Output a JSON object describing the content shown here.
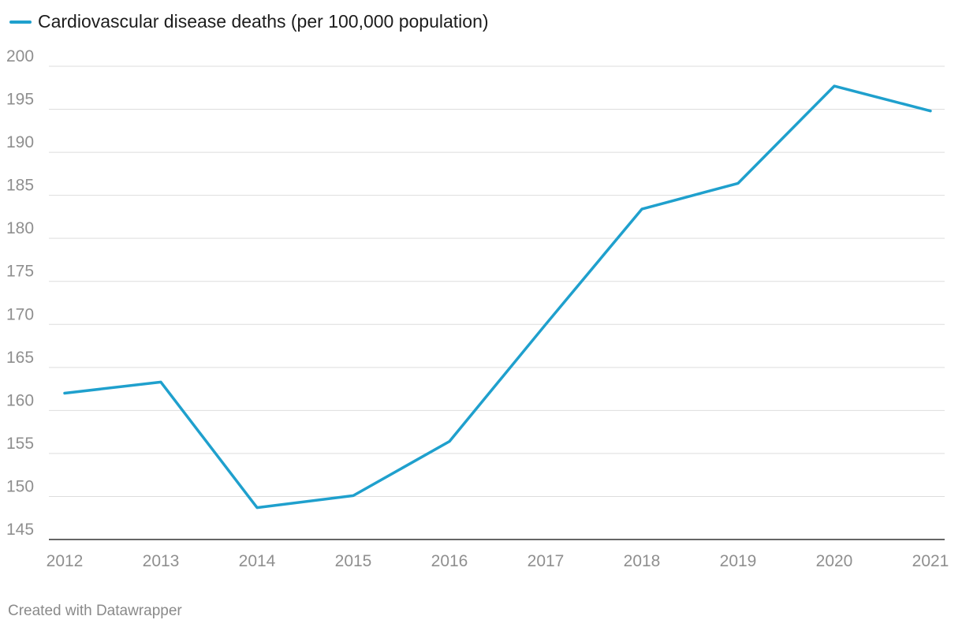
{
  "chart_data": {
    "type": "line",
    "title": "",
    "xlabel": "",
    "ylabel": "",
    "categories": [
      "2012",
      "2013",
      "2014",
      "2015",
      "2016",
      "2017",
      "2018",
      "2019",
      "2020",
      "2021"
    ],
    "series": [
      {
        "name": "Cardiovascular disease deaths (per 100,000 population)",
        "color": "#1fa0cd",
        "values": [
          162.0,
          163.3,
          148.7,
          150.1,
          156.4,
          170.0,
          183.4,
          186.4,
          197.7,
          194.8
        ]
      }
    ],
    "ylim": [
      145,
      200
    ],
    "yticks": [
      "145",
      "150",
      "155",
      "160",
      "165",
      "170",
      "175",
      "180",
      "185",
      "190",
      "195",
      "200"
    ],
    "grid": true,
    "legend_position": "top-left"
  },
  "colors": {
    "grid": "#dddddd",
    "tick_text": "#8f8f8f",
    "axis": "#333333"
  },
  "footer": {
    "credit": "Created with Datawrapper"
  }
}
